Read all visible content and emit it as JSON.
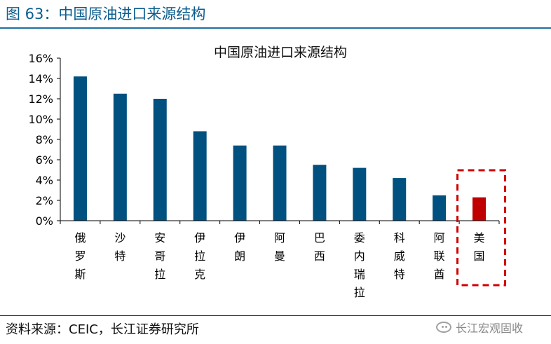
{
  "figure": {
    "title": "图 63：中国原油进口来源结构",
    "source": "资料来源：CEIC，长江证券研究所",
    "watermark": "长江宏观固收",
    "watermark_icon": "wechat-icon",
    "accent_color": "#1f6f9f"
  },
  "chart_data": {
    "type": "bar",
    "title": "中国原油进口来源结构",
    "xlabel": "",
    "ylabel": "",
    "categories": [
      "俄罗斯",
      "沙特",
      "安哥拉",
      "伊拉克",
      "伊朗",
      "阿曼",
      "巴西",
      "委内瑞拉",
      "科威特",
      "阿联酋",
      "美国"
    ],
    "values": [
      14.2,
      12.5,
      12.0,
      8.8,
      7.4,
      7.4,
      5.5,
      5.2,
      4.2,
      2.5,
      2.3
    ],
    "ylim": [
      0,
      16
    ],
    "yticks": [
      0,
      2,
      4,
      6,
      8,
      10,
      12,
      14,
      16
    ],
    "tick_format": "percent",
    "grid": false,
    "legend": "none",
    "bar_color": "#00517f",
    "highlight_color": "#c00000",
    "highlight_index": 10,
    "highlight_box_color": "#d00000"
  }
}
